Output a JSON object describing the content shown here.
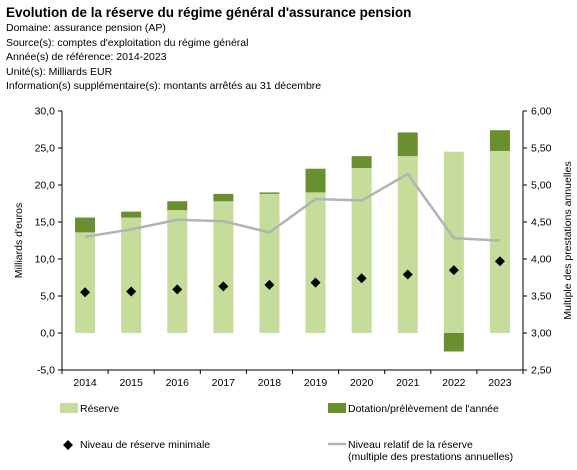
{
  "header": {
    "title": "Evolution de la réserve du régime général d'assurance pension",
    "domain": "Domaine: assurance pension (AP)",
    "source": "Source(s): comptes d'exploitation du régime général",
    "years": "Année(s) de référence: 2014-2023",
    "unit": "Unité(s): Milliards EUR",
    "info": "Information(s) supplémentaire(s): montants arrêtés au 31 décembre"
  },
  "chart_data": {
    "type": "bar",
    "categories": [
      "2014",
      "2015",
      "2016",
      "2017",
      "2018",
      "2019",
      "2020",
      "2021",
      "2022",
      "2023"
    ],
    "y_left_label": "Milliards d'euros",
    "y_right_label": "Multiple des prestations annuelles",
    "y_left_range": [
      -5,
      30
    ],
    "y_left_ticks": [
      "-5,0",
      "0,0",
      "5,0",
      "10,0",
      "15,0",
      "20,0",
      "25,0",
      "30,0"
    ],
    "y_right_range": [
      2.5,
      6.0
    ],
    "y_right_ticks": [
      "2,50",
      "3,00",
      "3,50",
      "4,00",
      "4,50",
      "5,00",
      "5,50",
      "6,00"
    ],
    "grid": false,
    "legend_position": "bottom",
    "series": [
      {
        "name": "Réserve",
        "kind": "stacked-bar",
        "color": "#c5dc9b",
        "values": [
          13.6,
          15.6,
          16.6,
          17.8,
          18.8,
          19.0,
          22.3,
          23.9,
          24.5,
          24.6
        ]
      },
      {
        "name": "Dotation/prélèvement de l'année",
        "kind": "stacked-bar",
        "color": "#6a8f2f",
        "values": [
          2.0,
          0.8,
          1.2,
          1.0,
          0.2,
          3.2,
          1.6,
          3.2,
          -2.5,
          2.8
        ]
      },
      {
        "name": "Niveau de réserve minimale",
        "kind": "marker",
        "marker": "diamond",
        "color": "#000000",
        "axis": "left",
        "values": [
          5.5,
          5.6,
          5.9,
          6.3,
          6.5,
          6.8,
          7.4,
          7.9,
          8.5,
          9.7
        ]
      },
      {
        "name": "Niveau relatif de la réserve",
        "name_line2": "(multiple des prestations annuelles)",
        "kind": "line",
        "color": "#b3b3b3",
        "axis": "right",
        "values": [
          4.3,
          4.4,
          4.53,
          4.51,
          4.36,
          4.81,
          4.79,
          5.15,
          4.28,
          4.25
        ]
      }
    ]
  }
}
